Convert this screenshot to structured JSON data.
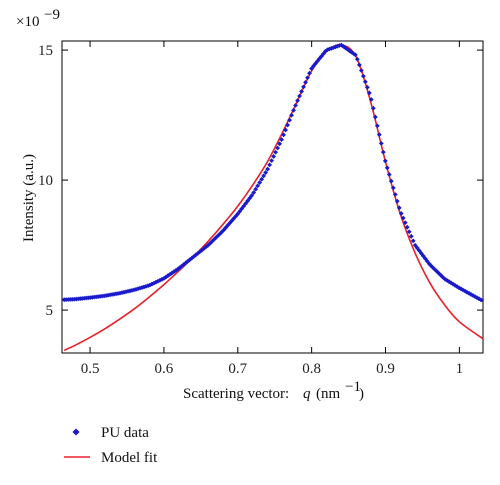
{
  "chart_data": {
    "type": "scatter",
    "xlabel": "Scattering vector:",
    "xlabel_var": "q",
    "xlabel_unit": "(nm",
    "xlabel_unit_exp": "−1",
    "xlabel_unit_close": ")",
    "ylabel": "Intensity (a.u.)",
    "y_multiplier": "×10",
    "y_multiplier_exp": "−9",
    "xlim": [
      0.462,
      1.032
    ],
    "ylim": [
      3.35,
      15.35
    ],
    "xticks": [
      0.5,
      0.6,
      0.7,
      0.8,
      0.9,
      1.0
    ],
    "xtick_labels": [
      "0.5",
      "0.6",
      "0.7",
      "0.8",
      "0.9",
      "1"
    ],
    "yticks": [
      5,
      10,
      15
    ],
    "ytick_labels": [
      "5",
      "10",
      "15"
    ],
    "grid": false,
    "legend_position": "bottom-left, below plot",
    "series": [
      {
        "name": "PU data",
        "style": "markers",
        "color": "#1a1acc",
        "x": [
          0.465,
          0.48,
          0.5,
          0.52,
          0.54,
          0.56,
          0.58,
          0.6,
          0.62,
          0.64,
          0.66,
          0.68,
          0.7,
          0.72,
          0.74,
          0.76,
          0.78,
          0.8,
          0.82,
          0.84,
          0.86,
          0.88,
          0.9,
          0.92,
          0.94,
          0.96,
          0.98,
          1.0,
          1.032
        ],
        "y": [
          5.4,
          5.42,
          5.48,
          5.55,
          5.65,
          5.78,
          5.95,
          6.22,
          6.6,
          7.05,
          7.5,
          8.05,
          8.7,
          9.45,
          10.4,
          11.6,
          13.0,
          14.3,
          15.0,
          15.2,
          14.8,
          13.2,
          10.7,
          8.8,
          7.5,
          6.75,
          6.2,
          5.85,
          5.35
        ]
      },
      {
        "name": "Model fit",
        "style": "line",
        "color": "#e8202a",
        "x": [
          0.465,
          0.48,
          0.5,
          0.52,
          0.54,
          0.56,
          0.58,
          0.6,
          0.62,
          0.64,
          0.66,
          0.68,
          0.7,
          0.72,
          0.74,
          0.76,
          0.78,
          0.8,
          0.82,
          0.84,
          0.86,
          0.88,
          0.9,
          0.92,
          0.94,
          0.96,
          0.98,
          1.0,
          1.032
        ],
        "y": [
          3.45,
          3.65,
          3.95,
          4.28,
          4.65,
          5.05,
          5.5,
          5.98,
          6.5,
          7.05,
          7.65,
          8.3,
          9.0,
          9.8,
          10.7,
          11.8,
          13.0,
          14.2,
          14.95,
          15.2,
          14.75,
          13.0,
          10.7,
          8.7,
          7.2,
          6.05,
          5.2,
          4.55,
          3.9
        ]
      }
    ]
  }
}
